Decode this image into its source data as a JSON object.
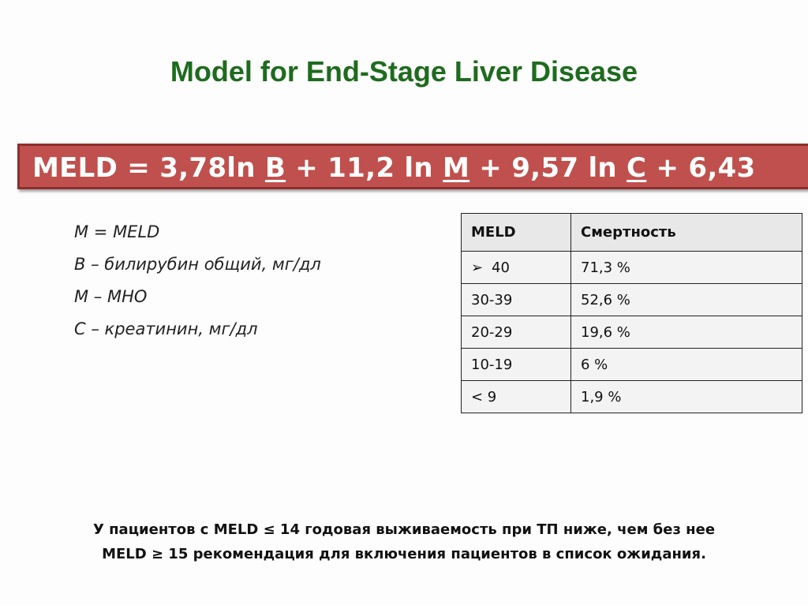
{
  "title": "Model for End-Stage Liver Disease",
  "formula": {
    "prefix": "MELD = 3,78ln ",
    "var_b": "B",
    "mid1": " + 11,2 ln ",
    "var_m": "M",
    "mid2": " + 9,57 ln ",
    "var_c": "C",
    "suffix": " + 6,43"
  },
  "legend": [
    "M = MELD",
    "В – билирубин общий, мг/дл",
    "М – МНО",
    "С – креатинин, мг/дл"
  ],
  "table": {
    "headers": [
      "MELD",
      "Смертность"
    ],
    "first_row_icon": "arrowhead-bullet-icon",
    "rows": [
      [
        "40",
        "71,3 %"
      ],
      [
        "30-39",
        "52,6 %"
      ],
      [
        "20-29",
        "19,6 %"
      ],
      [
        "10-19",
        "6 %"
      ],
      [
        "< 9",
        "1,9 %"
      ]
    ]
  },
  "notes": [
    "У пациентов с MELD ≤ 14 годовая выживаемость при ТП ниже, чем без нее",
    "MELD ≥ 15 рекомендация для включения пациентов в список ожидания."
  ],
  "colors": {
    "title": "#1e6b1e",
    "banner": "#c0504d",
    "banner_border": "#8c2f2c"
  }
}
